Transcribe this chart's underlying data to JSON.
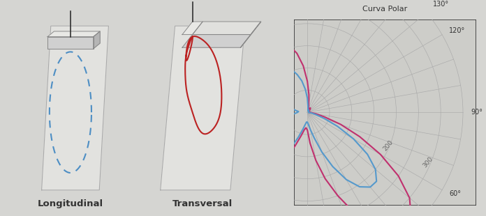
{
  "title": "Curva Polar",
  "bg_color": "#d5d5d2",
  "chart_bg_color": "#cdcdc9",
  "grid_color": "#aaaaaa",
  "label1": "Longitudinal",
  "label2": "Transversal",
  "pink_curve_color": "#c0306e",
  "blue_curve_color": "#5599cc",
  "r_scale": 350,
  "pink_curve_angles": [
    90,
    85,
    80,
    75,
    70,
    65,
    60,
    55,
    50,
    45,
    40,
    35,
    30,
    25,
    20,
    15,
    10,
    5,
    0,
    355,
    350,
    345,
    340,
    335,
    330,
    325,
    320,
    315,
    310,
    305,
    300,
    295,
    290,
    285,
    280,
    275,
    270,
    265,
    260,
    255,
    250,
    245,
    240,
    235,
    230,
    225,
    220,
    215,
    210,
    205,
    200,
    195,
    190,
    185,
    180,
    175,
    170,
    165,
    160,
    155,
    150,
    145,
    140,
    135,
    130,
    125,
    120,
    115,
    110,
    105,
    100,
    95,
    90
  ],
  "pink_curve_r": [
    5,
    10,
    20,
    40,
    80,
    130,
    190,
    250,
    300,
    330,
    340,
    330,
    300,
    250,
    200,
    155,
    110,
    70,
    40,
    35,
    40,
    55,
    80,
    115,
    155,
    185,
    205,
    215,
    210,
    195,
    175,
    150,
    125,
    100,
    75,
    55,
    40,
    38,
    45,
    60,
    80,
    110,
    145,
    175,
    200,
    215,
    220,
    215,
    200,
    185,
    170,
    155,
    135,
    105,
    70,
    40,
    18,
    10,
    8,
    8,
    10,
    12,
    10,
    8,
    5,
    5,
    5,
    5,
    5,
    5,
    5,
    5,
    5
  ],
  "blue_curve_angles": [
    90,
    85,
    80,
    75,
    70,
    65,
    60,
    55,
    50,
    45,
    40,
    35,
    30,
    25,
    20,
    15,
    10,
    5,
    0,
    355,
    350,
    345,
    340,
    335,
    330,
    325,
    320,
    315,
    310,
    305,
    300,
    295,
    290,
    285,
    280,
    275,
    270,
    265,
    260,
    255,
    250,
    245,
    240,
    235,
    230,
    225,
    220,
    215,
    210,
    205,
    200,
    195,
    190,
    185,
    180,
    175,
    170,
    165,
    160,
    155,
    150,
    145,
    140,
    135,
    130,
    125,
    120,
    115,
    110,
    105,
    100,
    95,
    90
  ],
  "blue_curve_r": [
    3,
    5,
    10,
    20,
    40,
    75,
    120,
    165,
    200,
    220,
    220,
    205,
    175,
    135,
    95,
    60,
    40,
    28,
    22,
    22,
    28,
    40,
    60,
    90,
    120,
    145,
    158,
    158,
    148,
    130,
    110,
    90,
    70,
    52,
    38,
    28,
    22,
    20,
    28,
    38,
    52,
    72,
    92,
    112,
    128,
    138,
    142,
    138,
    128,
    115,
    102,
    88,
    72,
    52,
    32,
    15,
    8,
    5,
    4,
    4,
    5,
    6,
    5,
    4,
    3,
    3,
    3,
    3,
    3,
    3,
    3,
    3,
    3
  ],
  "radii_rings": [
    50,
    100,
    150,
    200,
    250,
    300,
    350
  ],
  "angle_lines_deg": [
    0,
    10,
    20,
    30,
    40,
    50,
    60,
    70,
    80,
    90,
    100,
    110,
    120,
    130,
    140,
    150,
    160,
    170,
    180
  ]
}
